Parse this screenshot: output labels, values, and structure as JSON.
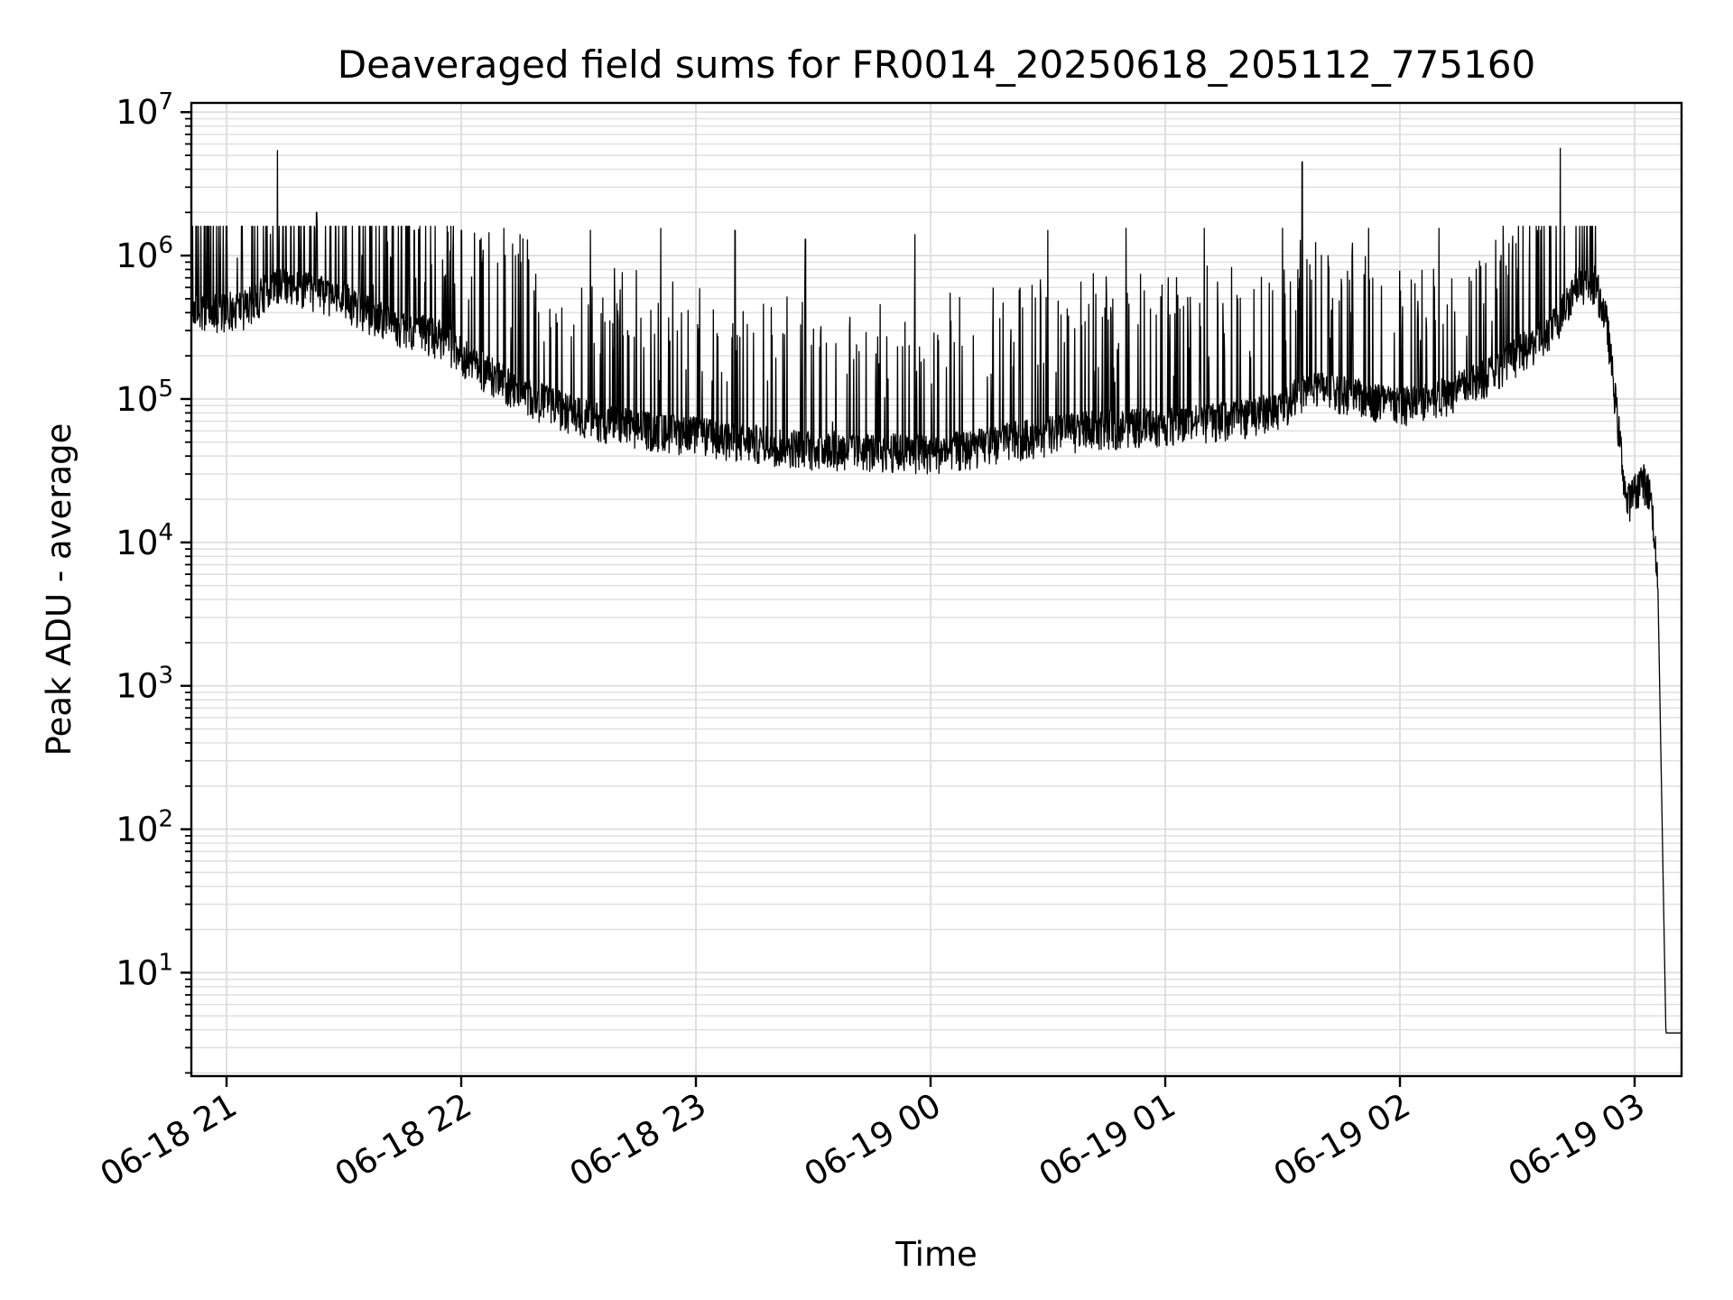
{
  "chart_data": {
    "type": "line",
    "title": "Deaveraged field sums for FR0014_20250618_205112_775160",
    "xlabel": "Time",
    "ylabel": "Peak ADU - average",
    "yscale": "log",
    "ylim": [
      1.9,
      11600000
    ],
    "xlim": [
      "2025-06-18 20:51",
      "2025-06-19 03:12"
    ],
    "grid": true,
    "line_color": "#000000",
    "grid_color": "#e0e0e0",
    "x_ticks": [
      {
        "value": "2025-06-18 21:00",
        "label": "06-18 21"
      },
      {
        "value": "2025-06-18 22:00",
        "label": "06-18 22"
      },
      {
        "value": "2025-06-18 23:00",
        "label": "06-18 23"
      },
      {
        "value": "2025-06-19 00:00",
        "label": "06-19 00"
      },
      {
        "value": "2025-06-19 01:00",
        "label": "06-19 01"
      },
      {
        "value": "2025-06-19 02:00",
        "label": "06-19 02"
      },
      {
        "value": "2025-06-19 03:00",
        "label": "06-19 03"
      }
    ],
    "y_ticks": [
      {
        "value": 10,
        "base": "10",
        "exp": "1"
      },
      {
        "value": 100,
        "base": "10",
        "exp": "2"
      },
      {
        "value": 1000,
        "base": "10",
        "exp": "3"
      },
      {
        "value": 10000,
        "base": "10",
        "exp": "4"
      },
      {
        "value": 100000,
        "base": "10",
        "exp": "5"
      },
      {
        "value": 1000000,
        "base": "10",
        "exp": "6"
      },
      {
        "value": 10000000,
        "base": "10",
        "exp": "7"
      }
    ],
    "series": [
      {
        "x": [
          "2025-06-18 20:51",
          "2025-06-18 20:55",
          "2025-06-18 21:00",
          "2025-06-18 21:05",
          "2025-06-18 21:10",
          "2025-06-18 21:13",
          "2025-06-18 21:15",
          "2025-06-18 21:20",
          "2025-06-18 21:25",
          "2025-06-18 21:30",
          "2025-06-18 21:35",
          "2025-06-18 21:40",
          "2025-06-18 21:45",
          "2025-06-18 21:50",
          "2025-06-18 21:55",
          "2025-06-18 22:00",
          "2025-06-18 22:05",
          "2025-06-18 22:10",
          "2025-06-18 22:15",
          "2025-06-18 22:20",
          "2025-06-18 22:30",
          "2025-06-18 22:40",
          "2025-06-18 22:50",
          "2025-06-18 23:00",
          "2025-06-18 23:10",
          "2025-06-18 23:20",
          "2025-06-18 23:30",
          "2025-06-18 23:40",
          "2025-06-18 23:50",
          "2025-06-19 00:00",
          "2025-06-19 00:10",
          "2025-06-19 00:20",
          "2025-06-19 00:30",
          "2025-06-19 00:40",
          "2025-06-19 00:50",
          "2025-06-19 01:00",
          "2025-06-19 01:10",
          "2025-06-19 01:20",
          "2025-06-19 01:30",
          "2025-06-19 01:35",
          "2025-06-19 01:40",
          "2025-06-19 01:50",
          "2025-06-19 02:00",
          "2025-06-19 02:10",
          "2025-06-19 02:20",
          "2025-06-19 02:30",
          "2025-06-19 02:35",
          "2025-06-19 02:40",
          "2025-06-19 02:45",
          "2025-06-19 02:50",
          "2025-06-19 02:53",
          "2025-06-19 02:55",
          "2025-06-19 02:58",
          "2025-06-19 03:02",
          "2025-06-19 03:04",
          "2025-06-19 03:05",
          "2025-06-19 03:06",
          "2025-06-19 03:08",
          "2025-06-19 03:12"
        ],
        "y": [
          430000,
          380000,
          410000,
          420000,
          560000,
          650000,
          600000,
          560000,
          520000,
          480000,
          400000,
          350000,
          310000,
          280000,
          260000,
          200000,
          160000,
          130000,
          110000,
          95000,
          75000,
          65000,
          58000,
          55000,
          50000,
          47000,
          44000,
          43000,
          42000,
          41000,
          44000,
          50000,
          55000,
          60000,
          62000,
          64000,
          67000,
          72000,
          85000,
          110000,
          115000,
          100000,
          88000,
          100000,
          130000,
          200000,
          240000,
          330000,
          610000,
          630000,
          320000,
          100000,
          18000,
          27000,
          21000,
          12000,
          4100,
          3.8,
          3.8
        ]
      }
    ],
    "spikes": [
      {
        "x": "2025-06-18 21:13",
        "y": 5400000
      },
      {
        "x": "2025-06-18 21:23",
        "y": 2000000
      },
      {
        "x": "2025-06-18 21:48",
        "y": 1500000
      },
      {
        "x": "2025-06-18 22:00",
        "y": 1500000
      },
      {
        "x": "2025-06-18 22:15",
        "y": 1400000
      },
      {
        "x": "2025-06-18 22:33",
        "y": 1500000
      },
      {
        "x": "2025-06-18 22:51",
        "y": 1550000
      },
      {
        "x": "2025-06-18 23:10",
        "y": 1500000
      },
      {
        "x": "2025-06-18 23:28",
        "y": 1300000
      },
      {
        "x": "2025-06-18 23:56",
        "y": 1400000
      },
      {
        "x": "2025-06-19 00:30",
        "y": 1500000
      },
      {
        "x": "2025-06-19 00:50",
        "y": 1550000
      },
      {
        "x": "2025-06-19 01:10",
        "y": 1550000
      },
      {
        "x": "2025-06-19 01:30",
        "y": 1550000
      },
      {
        "x": "2025-06-19 01:35",
        "y": 4500000
      },
      {
        "x": "2025-06-19 01:52",
        "y": 1550000
      },
      {
        "x": "2025-06-19 02:10",
        "y": 1550000
      },
      {
        "x": "2025-06-19 02:36",
        "y": 1500000
      },
      {
        "x": "2025-06-19 02:41",
        "y": 5600000
      }
    ]
  }
}
